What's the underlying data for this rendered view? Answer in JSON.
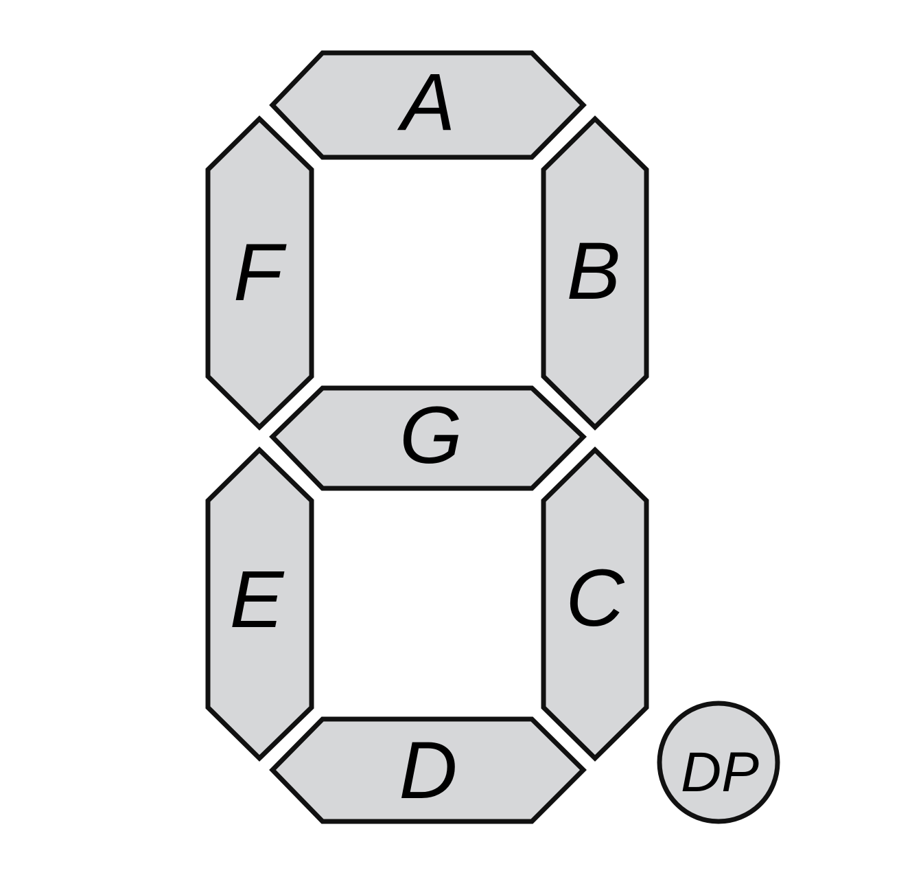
{
  "colors": {
    "segment_fill": "#d6d7d9",
    "segment_stroke": "#111111",
    "background": "#ffffff"
  },
  "segments": {
    "a": "A",
    "b": "B",
    "c": "C",
    "d": "D",
    "e": "E",
    "f": "F",
    "g": "G"
  },
  "decimal_point": "DP"
}
